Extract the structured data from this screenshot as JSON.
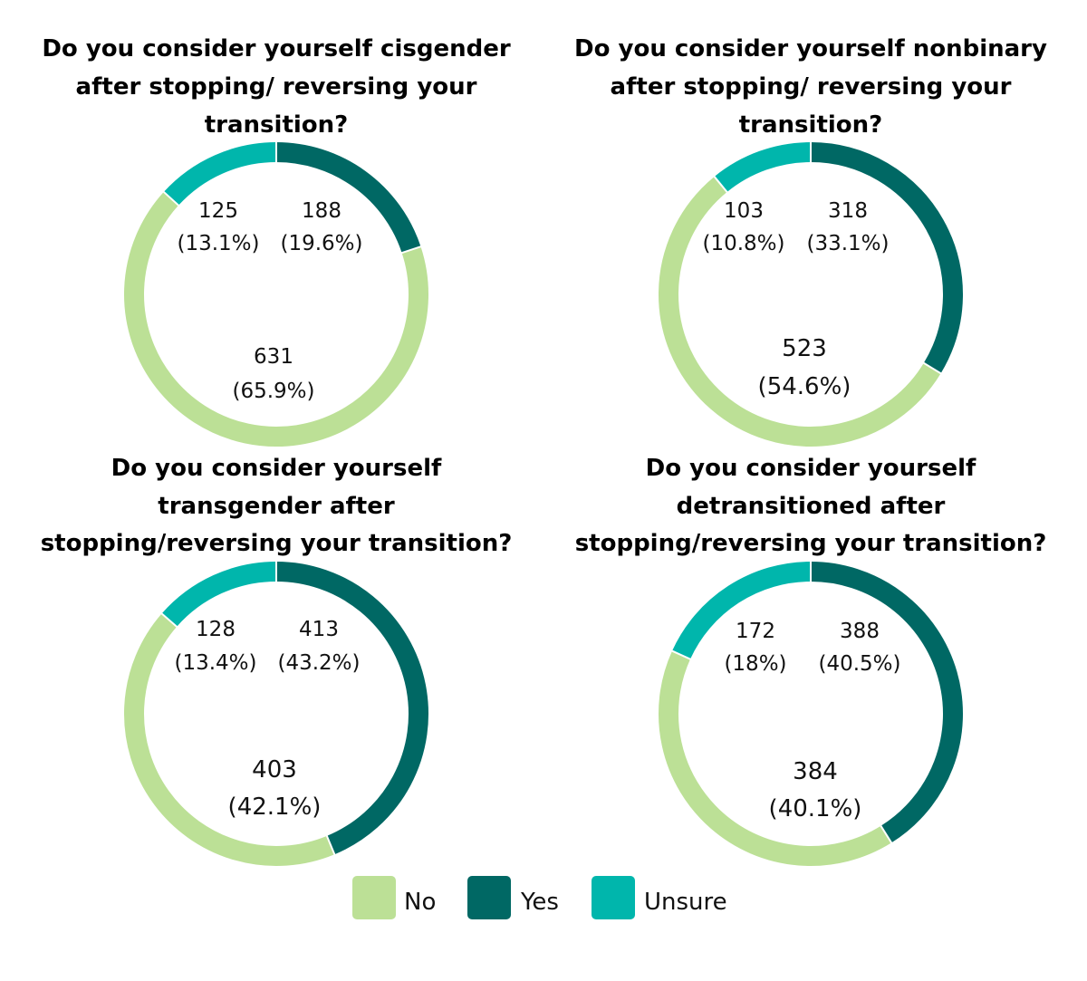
{
  "chart_data": [
    {
      "type": "pie",
      "title": "Do you consider yourself cisgender after stopping/ reversing your transition?",
      "title_lines": [
        "Do you consider yourself cisgender",
        "after stopping/ reversing your",
        "transition?"
      ],
      "categories": [
        "Yes",
        "No",
        "Unsure"
      ],
      "values": [
        188,
        631,
        125
      ],
      "labels": [
        {
          "count": "188",
          "pct": "(19.6%)"
        },
        {
          "count": "631",
          "pct": "(65.9%)"
        },
        {
          "count": "125",
          "pct": "(13.1%)"
        }
      ]
    },
    {
      "type": "pie",
      "title": "Do you consider yourself nonbinary after stopping/ reversing your transition?",
      "title_lines": [
        "Do you consider yourself nonbinary",
        "after stopping/ reversing your",
        "transition?"
      ],
      "categories": [
        "Yes",
        "No",
        "Unsure"
      ],
      "values": [
        318,
        523,
        103
      ],
      "labels": [
        {
          "count": "318",
          "pct": "(33.1%)"
        },
        {
          "count": "523",
          "pct": "(54.6%)"
        },
        {
          "count": "103",
          "pct": "(10.8%)"
        }
      ]
    },
    {
      "type": "pie",
      "title": "Do you consider yourself transgender after stopping/reversing your transition?",
      "title_lines": [
        "Do you consider yourself",
        "transgender after",
        "stopping/reversing your transition?"
      ],
      "categories": [
        "Yes",
        "No",
        "Unsure"
      ],
      "values": [
        413,
        403,
        128
      ],
      "labels": [
        {
          "count": "413",
          "pct": "(43.2%)"
        },
        {
          "count": "403",
          "pct": "(42.1%)"
        },
        {
          "count": "128",
          "pct": "(13.4%)"
        }
      ]
    },
    {
      "type": "pie",
      "title": "Do you consider yourself detransitioned after stopping/reversing your transition?",
      "title_lines": [
        "Do you consider yourself",
        "detransitioned after",
        "stopping/reversing your transition?"
      ],
      "categories": [
        "Yes",
        "No",
        "Unsure"
      ],
      "values": [
        388,
        384,
        172
      ],
      "labels": [
        {
          "count": "388",
          "pct": "(40.5%)"
        },
        {
          "count": "384",
          "pct": "(40.1%)"
        },
        {
          "count": "172",
          "pct": "(18%)"
        }
      ]
    }
  ],
  "legend": {
    "placement": "bottom-center",
    "items": [
      {
        "label": "No",
        "color": "#bce096"
      },
      {
        "label": "Yes",
        "color": "#006864"
      },
      {
        "label": "Unsure",
        "color": "#00b6ac"
      }
    ]
  },
  "colors": {
    "Yes": "#006864",
    "No": "#bce096",
    "Unsure": "#00b6ac"
  }
}
